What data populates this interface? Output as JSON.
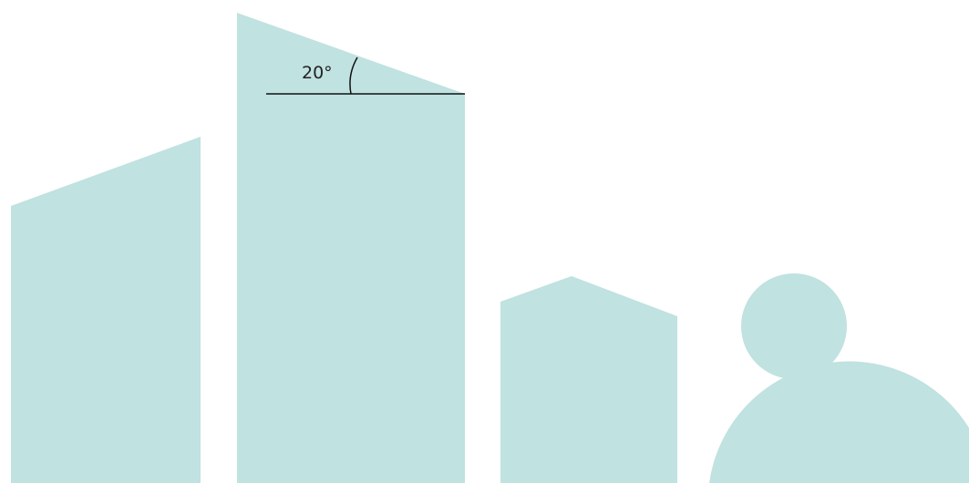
{
  "diagram": {
    "shape_color": "#c0e2e1",
    "line_color": "#111111",
    "angle_annotation": {
      "label": "20°",
      "angle_degrees": 20
    },
    "shapes": [
      {
        "name": "left-building",
        "kind": "slanted-roof-block"
      },
      {
        "name": "tall-building",
        "kind": "slanted-roof-block"
      },
      {
        "name": "small-house",
        "kind": "gable-roof-block"
      },
      {
        "name": "person-head",
        "kind": "circle"
      },
      {
        "name": "person-body",
        "kind": "half-circle"
      }
    ]
  }
}
